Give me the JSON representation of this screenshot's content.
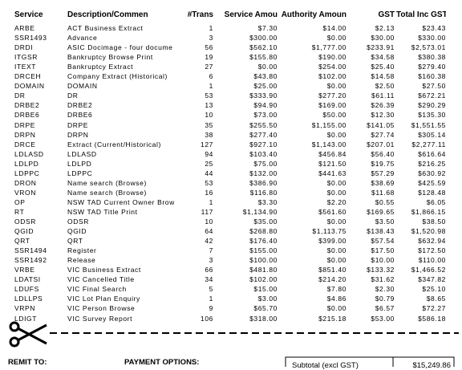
{
  "table": {
    "headers": [
      "Service",
      "Description/Commen",
      "#Trans",
      "Service Amou",
      "Authority Amoun",
      "GST",
      "Total Inc GST"
    ],
    "rows": [
      [
        "ARBE",
        "ACT Business Extract",
        "1",
        "$7.30",
        "$14.00",
        "$2.13",
        "$23.43"
      ],
      [
        "SSR1493",
        "Advance",
        "3",
        "$300.00",
        "$0.00",
        "$30.00",
        "$330.00"
      ],
      [
        "DRDI",
        "ASIC Docimage - four docume",
        "56",
        "$562.10",
        "$1,777.00",
        "$233.91",
        "$2,573.01"
      ],
      [
        "ITGSR",
        "Bankruptcy Browse Print",
        "19",
        "$155.80",
        "$190.00",
        "$34.58",
        "$380.38"
      ],
      [
        "ITEXT",
        "Bankruptcy Extract",
        "27",
        "$0.00",
        "$254.00",
        "$25.40",
        "$279.40"
      ],
      [
        "DRCEH",
        "Company Extract (Historical)",
        "6",
        "$43.80",
        "$102.00",
        "$14.58",
        "$160.38"
      ],
      [
        "DOMAIN",
        "DOMAIN",
        "1",
        "$25.00",
        "$0.00",
        "$2.50",
        "$27.50"
      ],
      [
        "DR",
        "DR",
        "53",
        "$333.90",
        "$277.20",
        "$61.11",
        "$672.21"
      ],
      [
        "DRBE2",
        "DRBE2",
        "13",
        "$94.90",
        "$169.00",
        "$26.39",
        "$290.29"
      ],
      [
        "DRBE6",
        "DRBE6",
        "10",
        "$73.00",
        "$50.00",
        "$12.30",
        "$135.30"
      ],
      [
        "DRPE",
        "DRPE",
        "35",
        "$255.50",
        "$1,155.00",
        "$141.05",
        "$1,551.55"
      ],
      [
        "DRPN",
        "DRPN",
        "38",
        "$277.40",
        "$0.00",
        "$27.74",
        "$305.14"
      ],
      [
        "DRCE",
        "Extract (Current/Historical)",
        "127",
        "$927.10",
        "$1,143.00",
        "$207.01",
        "$2,277.11"
      ],
      [
        "LDLASD",
        "LDLASD",
        "94",
        "$103.40",
        "$456.84",
        "$56.40",
        "$616.64"
      ],
      [
        "LDLPD",
        "LDLPD",
        "25",
        "$75.00",
        "$121.50",
        "$19.75",
        "$216.25"
      ],
      [
        "LDPPC",
        "LDPPC",
        "44",
        "$132.00",
        "$441.63",
        "$57.29",
        "$630.92"
      ],
      [
        "DRON",
        "Name search (Browse)",
        "53",
        "$386.90",
        "$0.00",
        "$38.69",
        "$425.59"
      ],
      [
        "VRON",
        "Name search (Browse)",
        "16",
        "$116.80",
        "$0.00",
        "$11.68",
        "$128.48"
      ],
      [
        "OP",
        "NSW TAD Current Owner Brow",
        "1",
        "$3.30",
        "$2.20",
        "$0.55",
        "$6.05"
      ],
      [
        "RT",
        "NSW TAD Title Print",
        "117",
        "$1,134.90",
        "$561.60",
        "$169.65",
        "$1,866.15"
      ],
      [
        "ODSR",
        "ODSR",
        "10",
        "$35.00",
        "$0.00",
        "$3.50",
        "$38.50"
      ],
      [
        "QGID",
        "QGID",
        "64",
        "$268.80",
        "$1,113.75",
        "$138.43",
        "$1,520.98"
      ],
      [
        "QRT",
        "QRT",
        "42",
        "$176.40",
        "$399.00",
        "$57.54",
        "$632.94"
      ],
      [
        "SSR1494",
        "Register",
        "7",
        "$155.00",
        "$0.00",
        "$17.50",
        "$172.50"
      ],
      [
        "SSR1492",
        "Release",
        "3",
        "$100.00",
        "$0.00",
        "$10.00",
        "$110.00"
      ],
      [
        "VRBE",
        "VIC Business Extract",
        "66",
        "$481.80",
        "$851.40",
        "$133.32",
        "$1,466.52"
      ],
      [
        "LDATSI",
        "VIC Cancelled Title",
        "34",
        "$102.00",
        "$214.20",
        "$31.62",
        "$347.82"
      ],
      [
        "LDUFS",
        "VIC Final Search",
        "5",
        "$15.00",
        "$7.80",
        "$2.30",
        "$25.10"
      ],
      [
        "LDLLPS",
        "VIC Lot Plan Enquiry",
        "1",
        "$3.00",
        "$4.86",
        "$0.79",
        "$8.65"
      ],
      [
        "VRPN",
        "VIC Person Browse",
        "9",
        "$65.70",
        "$0.00",
        "$6.57",
        "$72.27"
      ],
      [
        "LDIGT",
        "VIC Survey Report",
        "106",
        "$318.00",
        "$215.18",
        "$53.00",
        "$586.18"
      ]
    ]
  },
  "footer": {
    "remit_to": "REMIT TO:",
    "payment_options": "PAYMENT OPTIONS:",
    "subtotal_label": "Subtotal (excl GST)",
    "subtotal_value": "$15,249.86"
  }
}
